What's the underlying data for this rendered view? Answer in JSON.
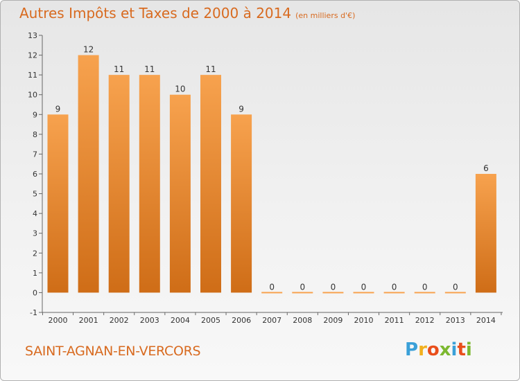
{
  "header": {
    "title": "Autres Impôts et Taxes de 2000 à 2014",
    "unit": "(en milliers d'€)"
  },
  "footer": {
    "commune": "SAINT-AGNAN-EN-VERCORS",
    "logo": "Proxiti"
  },
  "colors": {
    "accent": "#d86a1f",
    "bar_light": "#f7a24e",
    "bar_dark": "#cf6d17"
  },
  "chart_data": {
    "type": "bar",
    "categories": [
      "2000",
      "2001",
      "2002",
      "2003",
      "2004",
      "2005",
      "2006",
      "2007",
      "2008",
      "2009",
      "2010",
      "2011",
      "2012",
      "2013",
      "2014"
    ],
    "values": [
      9,
      12,
      11,
      11,
      10,
      11,
      9,
      0,
      0,
      0,
      0,
      0,
      0,
      0,
      6
    ],
    "data_labels": [
      "9",
      "12",
      "11",
      "11",
      "10",
      "11",
      "9",
      "0",
      "0",
      "0",
      "0",
      "0",
      "0",
      "0",
      "6"
    ],
    "y_ticks": [
      "-1",
      "0",
      "1",
      "2",
      "3",
      "4",
      "5",
      "6",
      "7",
      "8",
      "9",
      "10",
      "11",
      "12",
      "13"
    ],
    "ylim": [
      -1,
      13
    ],
    "grid": false,
    "legend": "none"
  }
}
